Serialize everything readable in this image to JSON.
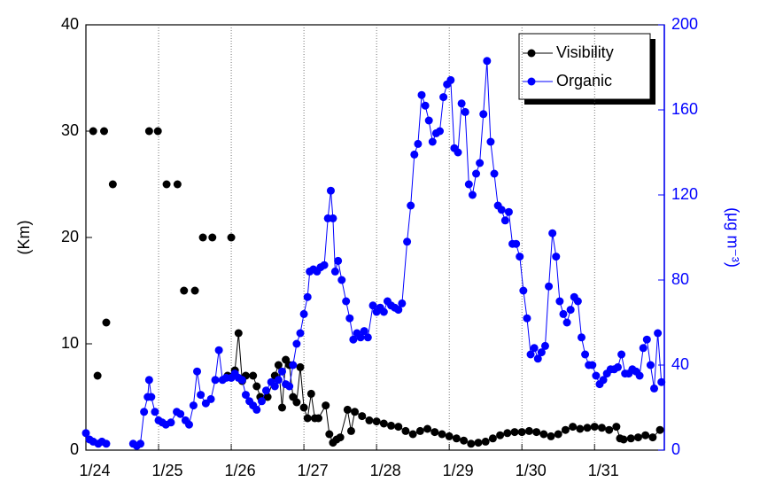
{
  "chart_data": {
    "type": "line",
    "xlim": [
      0,
      7.96
    ],
    "xticks": [
      {
        "value": 0,
        "label": "1/24"
      },
      {
        "value": 1,
        "label": "1/25"
      },
      {
        "value": 2,
        "label": "1/26"
      },
      {
        "value": 3,
        "label": "1/27"
      },
      {
        "value": 4,
        "label": "1/28"
      },
      {
        "value": 5,
        "label": "1/29"
      },
      {
        "value": 6,
        "label": "1/30"
      },
      {
        "value": 7,
        "label": "1/31"
      }
    ],
    "ylim": [
      0,
      40
    ],
    "yticks": [
      0,
      10,
      20,
      30,
      40
    ],
    "y2lim": [
      0,
      200
    ],
    "y2ticks": [
      0,
      40,
      80,
      120,
      160,
      200
    ],
    "ylabel": "(Km)",
    "y2label": "(μg m⁻³)",
    "y2color": "#0000ff",
    "grid": "x",
    "legend": "upper right",
    "series": [
      {
        "name": "Visibility",
        "color": "#000000",
        "axis": "y",
        "x": [
          0.1,
          null,
          0.16,
          null,
          0.25,
          null,
          0.28,
          null,
          0.37,
          null,
          0.87,
          null,
          0.99,
          null,
          1.11,
          null,
          1.26,
          null,
          1.35,
          null,
          1.5,
          null,
          1.61,
          null,
          1.74,
          null,
          2.0,
          null,
          1.95,
          2.05,
          2.1,
          2.15,
          2.2,
          2.3,
          2.35,
          2.4,
          2.5,
          2.6,
          2.65,
          2.7,
          2.75,
          2.8,
          2.85,
          2.9,
          2.95,
          3.0,
          3.05,
          3.1,
          3.15,
          3.2,
          3.3,
          3.35,
          3.4,
          3.45,
          3.5,
          3.6,
          3.65,
          3.7,
          3.8,
          3.9,
          4.0,
          4.1,
          4.2,
          4.3,
          4.4,
          4.5,
          4.6,
          4.7,
          4.8,
          4.9,
          5.0,
          5.1,
          5.2,
          5.3,
          5.4,
          5.5,
          5.6,
          5.7,
          5.8,
          5.9,
          6.0,
          6.1,
          6.2,
          6.3,
          6.4,
          6.5,
          6.6,
          6.7,
          6.8,
          6.9,
          7.0,
          7.1,
          7.2,
          7.3,
          7.35,
          7.4,
          7.5,
          7.6,
          7.7,
          7.8,
          7.9
        ],
        "values": [
          30,
          null,
          7,
          null,
          30,
          null,
          12,
          null,
          25,
          null,
          30,
          null,
          30,
          null,
          25,
          null,
          25,
          null,
          15,
          null,
          15,
          null,
          20,
          null,
          20,
          null,
          20,
          null,
          7,
          7.5,
          11,
          6.5,
          7,
          7,
          6,
          5,
          5,
          7,
          8,
          4,
          8.5,
          8,
          5,
          4.5,
          7.8,
          4,
          3,
          5.3,
          3,
          3,
          4.2,
          1.5,
          0.7,
          1,
          1.2,
          3.8,
          1.8,
          3.6,
          3.2,
          2.8,
          2.7,
          2.5,
          2.3,
          2.2,
          1.8,
          1.5,
          1.8,
          2,
          1.7,
          1.5,
          1.3,
          1.1,
          0.9,
          0.6,
          0.7,
          0.8,
          1.1,
          1.4,
          1.6,
          1.7,
          1.7,
          1.8,
          1.7,
          1.5,
          1.3,
          1.5,
          1.9,
          2.2,
          2,
          2.1,
          2.2,
          2.1,
          1.9,
          2.2,
          1.1,
          1,
          1.1,
          1.2,
          1.4,
          1.2,
          1.9
        ]
      },
      {
        "name": "Organic",
        "color": "#0000ff",
        "axis": "y2",
        "x": [
          0.0,
          0.05,
          0.1,
          0.17,
          0.22,
          0.28,
          null,
          0.65,
          0.7,
          0.75,
          0.8,
          0.85,
          0.87,
          0.9,
          0.95,
          1.0,
          1.05,
          1.1,
          1.17,
          1.25,
          1.3,
          1.37,
          1.42,
          1.48,
          1.53,
          1.58,
          1.65,
          1.72,
          1.78,
          1.83,
          1.88,
          1.93,
          2.0,
          2.05,
          2.1,
          2.15,
          2.2,
          2.25,
          2.3,
          2.35,
          2.42,
          2.48,
          2.55,
          2.6,
          2.65,
          2.7,
          2.75,
          2.8,
          2.85,
          2.9,
          2.95,
          3.0,
          3.05,
          3.08,
          3.13,
          3.18,
          3.23,
          3.28,
          3.33,
          3.37,
          3.4,
          3.43,
          3.47,
          3.52,
          3.58,
          3.63,
          3.68,
          3.73,
          3.78,
          3.83,
          3.88,
          3.95,
          4.0,
          4.05,
          4.1,
          4.15,
          4.2,
          4.25,
          4.3,
          4.35,
          4.42,
          4.47,
          4.52,
          4.57,
          4.62,
          4.67,
          4.72,
          4.77,
          4.82,
          4.87,
          4.92,
          4.97,
          5.02,
          5.07,
          5.12,
          5.17,
          5.22,
          5.27,
          5.32,
          5.37,
          5.42,
          5.47,
          5.52,
          5.57,
          5.62,
          5.67,
          5.72,
          5.77,
          5.82,
          5.87,
          5.92,
          5.97,
          6.02,
          6.07,
          6.12,
          6.17,
          6.22,
          6.27,
          6.32,
          6.37,
          6.42,
          6.47,
          6.52,
          6.57,
          6.62,
          6.67,
          6.72,
          6.77,
          6.82,
          6.87,
          6.92,
          6.97,
          7.02,
          7.07,
          7.12,
          7.17,
          7.22,
          7.27,
          7.32,
          7.37,
          7.42,
          7.47,
          7.52,
          7.57,
          7.62,
          7.67,
          7.72,
          7.77,
          7.82,
          7.87,
          7.92
        ],
        "values": [
          8,
          5,
          4,
          3,
          4,
          3,
          null,
          3,
          2,
          3,
          18,
          25,
          33,
          25,
          18,
          14,
          13,
          12,
          13,
          18,
          17,
          14,
          12,
          21,
          37,
          26,
          22,
          24,
          33,
          47,
          33,
          34,
          34,
          36,
          34,
          33,
          26,
          23,
          21,
          19,
          23,
          28,
          32,
          30,
          33,
          37,
          31,
          30,
          40,
          50,
          55,
          64,
          72,
          84,
          85,
          84,
          86,
          87,
          109,
          122,
          109,
          84,
          89,
          80,
          70,
          62,
          52,
          55,
          53,
          56,
          53,
          68,
          65,
          67,
          65,
          70,
          68,
          67,
          66,
          69,
          98,
          115,
          139,
          144,
          167,
          162,
          155,
          145,
          149,
          150,
          166,
          172,
          174,
          142,
          140,
          163,
          159,
          125,
          120,
          130,
          135,
          158,
          183,
          145,
          130,
          115,
          113,
          108,
          112,
          97,
          97,
          91,
          75,
          62,
          45,
          48,
          43,
          46,
          49,
          77,
          102,
          91,
          70,
          64,
          60,
          66,
          72,
          70,
          53,
          45,
          40,
          40,
          35,
          31,
          33,
          36,
          38,
          38,
          39,
          45,
          36,
          36,
          38,
          37,
          35,
          48,
          52,
          40,
          29,
          55,
          32
        ]
      }
    ]
  }
}
